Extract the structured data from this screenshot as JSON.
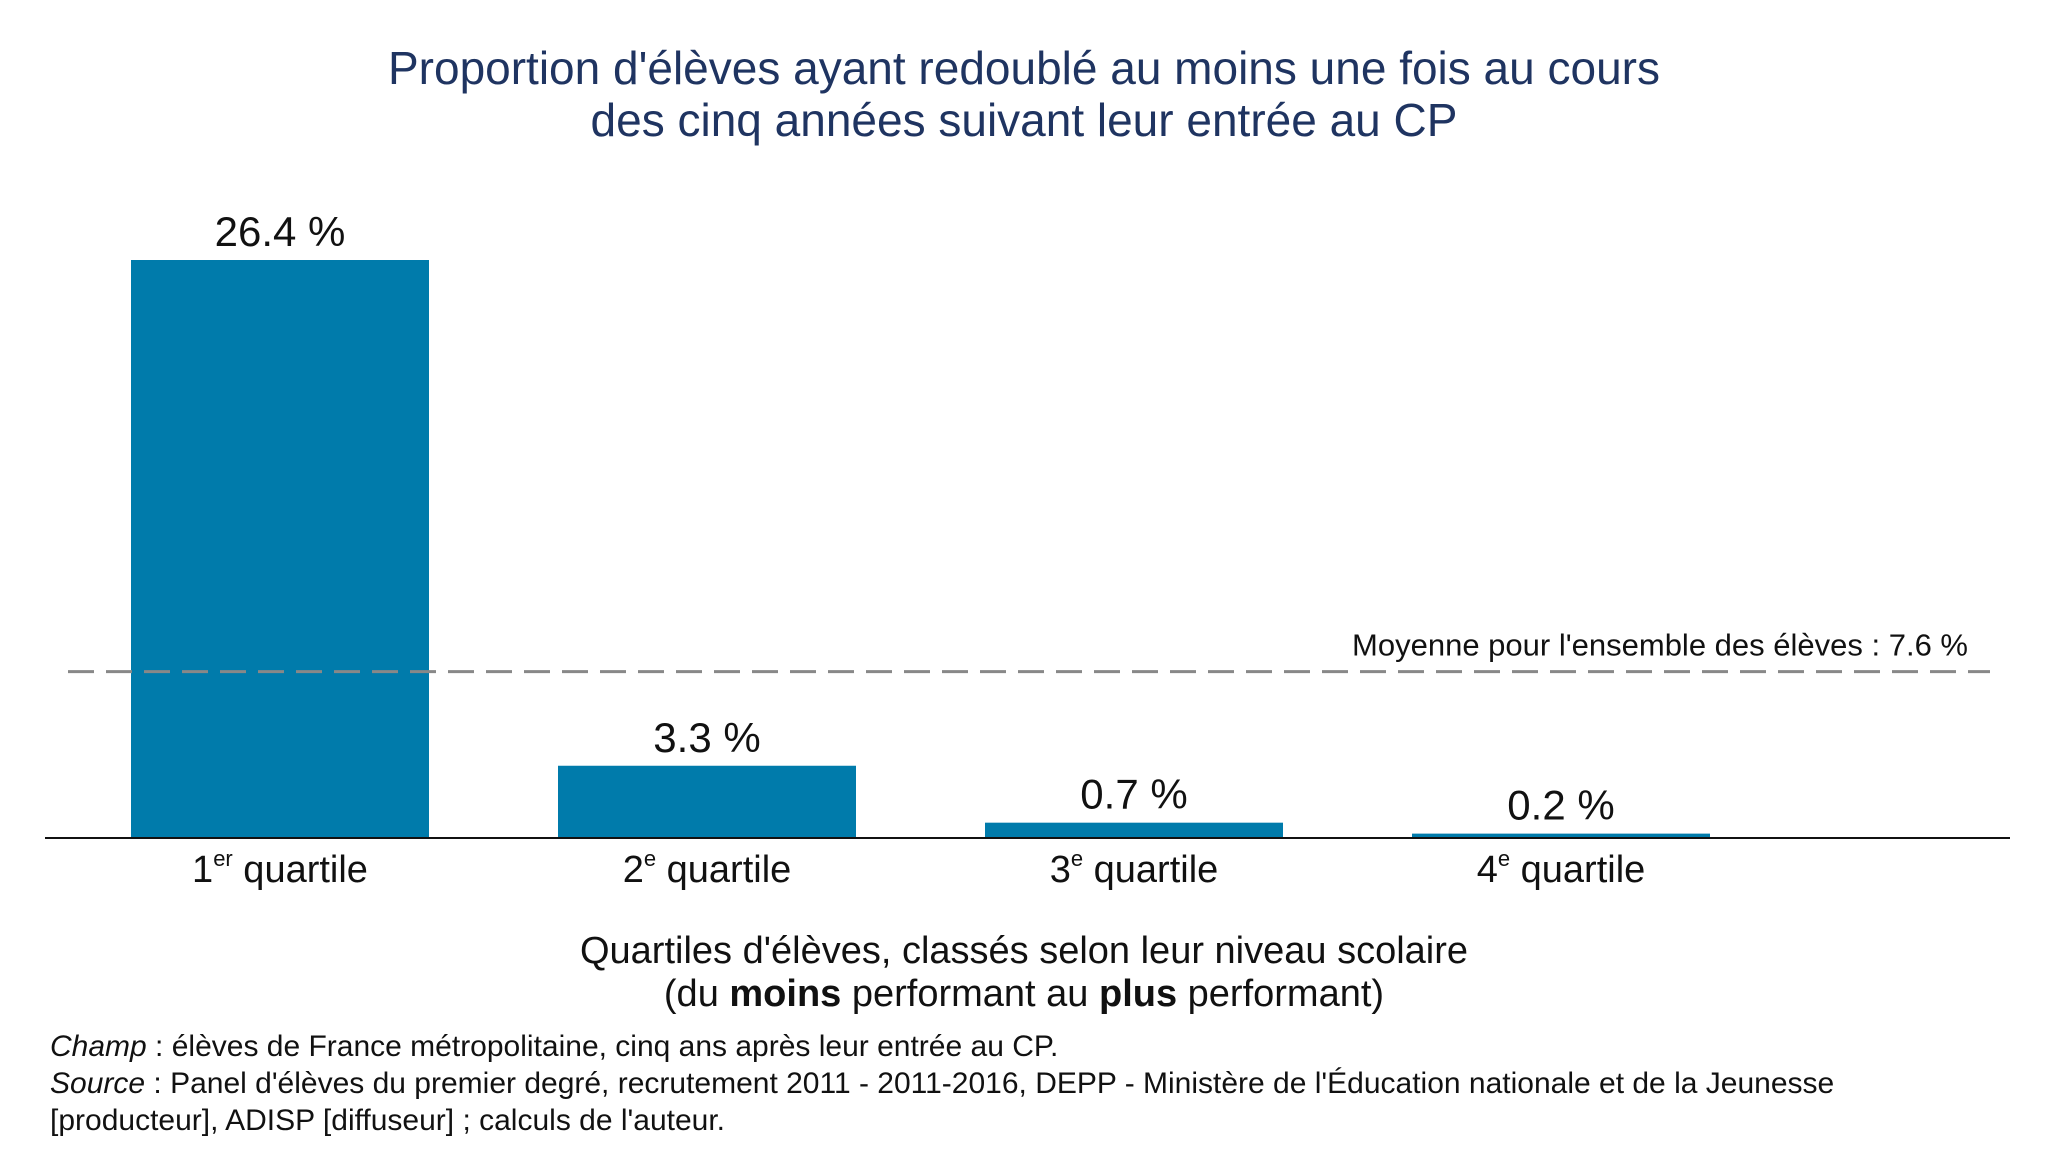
{
  "chart_data": {
    "type": "bar",
    "title_lines": [
      "Proportion d'élèves ayant redoublé au moins une fois au cours",
      "des cinq années suivant leur entrée au CP"
    ],
    "categories": [
      {
        "num": "1",
        "sup": "er",
        "text": "quartile"
      },
      {
        "num": "2",
        "sup": "e",
        "text": "quartile"
      },
      {
        "num": "3",
        "sup": "e",
        "text": "quartile"
      },
      {
        "num": "4",
        "sup": "e",
        "text": "quartile"
      }
    ],
    "values": [
      26.4,
      3.3,
      0.7,
      0.2
    ],
    "value_labels": [
      "26.4 %",
      "3.3 %",
      "0.7 %",
      "0.2 %"
    ],
    "bar_color": "#007bab",
    "reference_line": {
      "value": 7.6,
      "label": "Moyenne pour l'ensemble des élèves : 7.6 %",
      "color": "#888888",
      "style": "dashed"
    },
    "xlabel": {
      "line1": "Quartiles d'élèves, classés selon leur niveau scolaire",
      "line2_parts": [
        {
          "text": "(du ",
          "bold": false
        },
        {
          "text": "moins",
          "bold": true
        },
        {
          "text": " performant au ",
          "bold": false
        },
        {
          "text": "plus",
          "bold": true
        },
        {
          "text": " performant)",
          "bold": false
        }
      ]
    },
    "ylabel": "",
    "ylim": [
      0,
      26.4
    ],
    "grid": false,
    "title_color": "#1f3461"
  },
  "notes": {
    "champ_label": "Champ",
    "champ_text": " : élèves de France métropolitaine, cinq ans après leur entrée au CP.",
    "source_label": "Source",
    "source_text": " : Panel d'élèves du premier degré, recrutement 2011 - 2011-2016, DEPP - Ministère de l'Éducation nationale et de la Jeunesse",
    "source_text_2": "[producteur], ADISP [diffuseur] ; calculs de l'auteur."
  }
}
